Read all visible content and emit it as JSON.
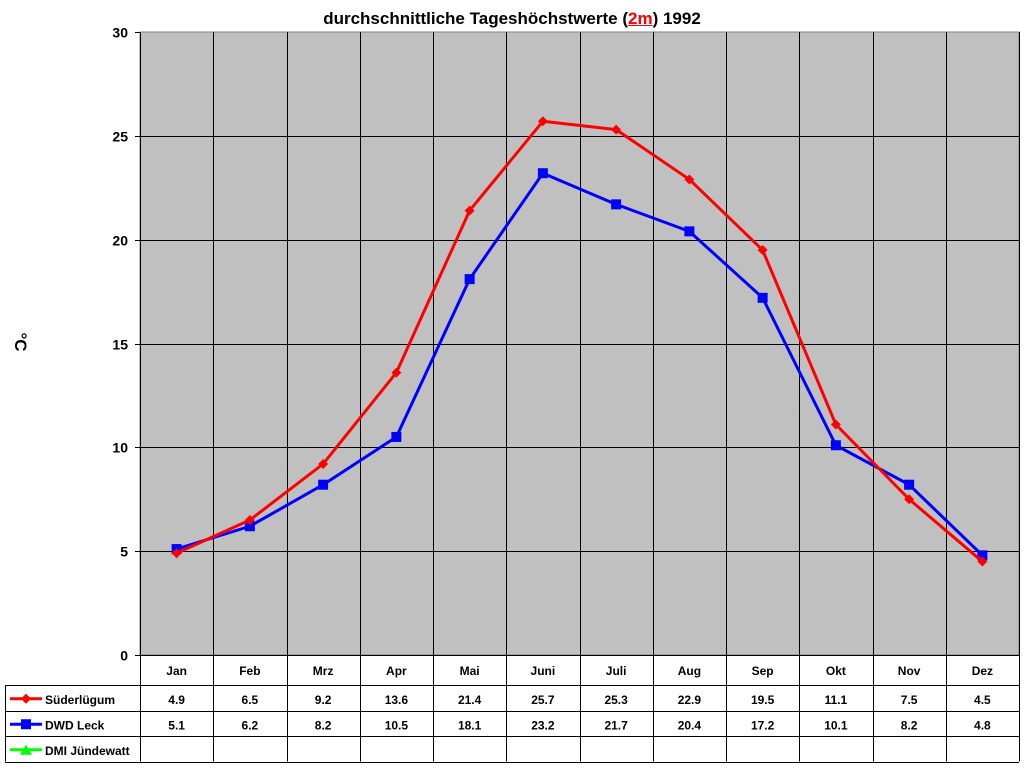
{
  "title": {
    "prefix": "durchschnittliche Tageshöchstwerte (",
    "highlight": "2m",
    "suffix": ") 1992"
  },
  "y_axis_label": "°C",
  "colors": {
    "plot_bg": "#c0c0c0",
    "suderlugum": "#ff0000",
    "dwd_leck": "#0000ff",
    "dmi_jundewatt": "#00ff00"
  },
  "chart_data": {
    "type": "line",
    "title": "durchschnittliche Tageshöchstwerte (2m) 1992",
    "xlabel": "",
    "ylabel": "°C",
    "ylim": [
      0,
      30
    ],
    "yticks": [
      0,
      5,
      10,
      15,
      20,
      25,
      30
    ],
    "grid": true,
    "legend_position": "data-table",
    "categories": [
      "Jan",
      "Feb",
      "Mrz",
      "Apr",
      "Mai",
      "Juni",
      "Juli",
      "Aug",
      "Sep",
      "Okt",
      "Nov",
      "Dez"
    ],
    "series": [
      {
        "name": "Süderlügum",
        "color": "#ff0000",
        "marker": "diamond",
        "values": [
          4.9,
          6.5,
          9.2,
          13.6,
          21.4,
          25.7,
          25.3,
          22.9,
          19.5,
          11.1,
          7.5,
          4.5
        ]
      },
      {
        "name": "DWD Leck",
        "color": "#0000ff",
        "marker": "square",
        "values": [
          5.1,
          6.2,
          8.2,
          10.5,
          18.1,
          23.2,
          21.7,
          20.4,
          17.2,
          10.1,
          8.2,
          4.8
        ]
      },
      {
        "name": "DMI Jündewatt",
        "color": "#00ff00",
        "marker": "triangle",
        "values": [
          null,
          null,
          null,
          null,
          null,
          null,
          null,
          null,
          null,
          null,
          null,
          null
        ]
      }
    ]
  },
  "table": {
    "rows": [
      {
        "label": "Süderlügum",
        "cells": [
          "4.9",
          "6.5",
          "9.2",
          "13.6",
          "21.4",
          "25.7",
          "25.3",
          "22.9",
          "19.5",
          "11.1",
          "7.5",
          "4.5"
        ]
      },
      {
        "label": "DWD Leck",
        "cells": [
          "5.1",
          "6.2",
          "8.2",
          "10.5",
          "18.1",
          "23.2",
          "21.7",
          "20.4",
          "17.2",
          "10.1",
          "8.2",
          "4.8"
        ]
      },
      {
        "label": "DMI Jündewatt",
        "cells": [
          "",
          "",
          "",
          "",
          "",
          "",
          "",
          "",
          "",
          "",
          "",
          ""
        ]
      }
    ]
  }
}
